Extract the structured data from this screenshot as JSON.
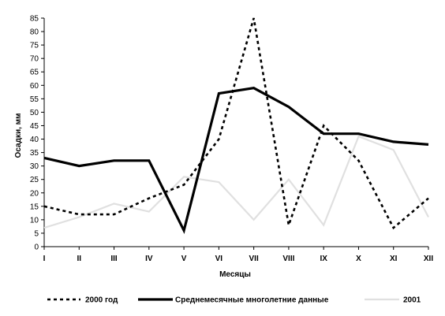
{
  "chart_data": {
    "type": "line",
    "xlabel": "Месяцы",
    "ylabel": "Осадки, мм",
    "ylim": [
      0,
      85
    ],
    "y_ticks": [
      0,
      5,
      10,
      15,
      20,
      25,
      30,
      35,
      40,
      45,
      50,
      55,
      60,
      65,
      70,
      75,
      80,
      85
    ],
    "categories": [
      "I",
      "II",
      "III",
      "IV",
      "V",
      "VI",
      "VII",
      "VIII",
      "IX",
      "X",
      "XI",
      "XII"
    ],
    "grid": false,
    "legend_position": "bottom",
    "series": [
      {
        "name": "2000 год",
        "color": "#000000",
        "style": "dotted",
        "values": [
          15,
          12,
          12,
          18,
          23,
          40,
          85,
          8,
          45,
          32,
          7,
          18
        ]
      },
      {
        "name": "Среднемесячные многолетние данные",
        "color": "#000000",
        "style": "solid-thick",
        "values": [
          33,
          30,
          32,
          32,
          6,
          57,
          59,
          52,
          42,
          42,
          39,
          38
        ]
      },
      {
        "name": "2001",
        "color": "#e0e0e0",
        "style": "solid",
        "values": [
          7,
          11,
          16,
          13,
          26,
          24,
          10,
          25,
          8,
          41,
          36,
          11
        ]
      }
    ]
  }
}
